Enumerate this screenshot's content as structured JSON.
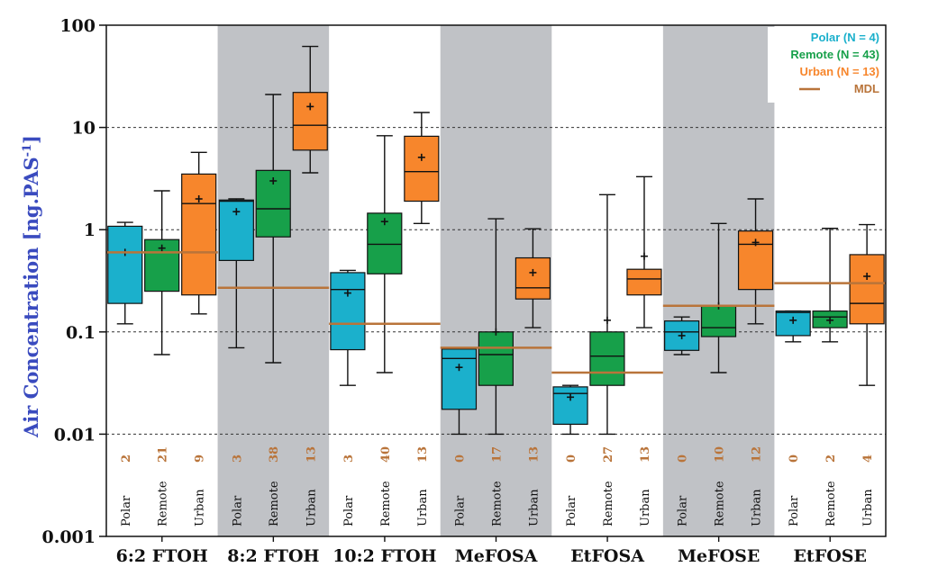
{
  "chart_data": {
    "type": "box",
    "ylabel": "Air Concentration [ng.PAS",
    "ylabel_sup": "-1",
    "ylabel_end": "]",
    "yscale": "log",
    "ylim": [
      0.001,
      100
    ],
    "yticks": [
      "0.001",
      "0.01",
      "0.1",
      "1",
      "10",
      "100"
    ],
    "grid": "dotted horizontal at 0.01, 0.1, 1, 10",
    "groups": [
      "Polar",
      "Remote",
      "Urban"
    ],
    "colors": {
      "Polar": "#1bb0cc",
      "Remote": "#17a04a",
      "Urban": "#f7862c",
      "MDL": "#b9743a",
      "shade": "#c0c2c6"
    },
    "legend": {
      "placement": "top-right",
      "entries": [
        {
          "label": "Polar (N = 4)",
          "color": "#1bb0cc"
        },
        {
          "label": "Remote (N = 43)",
          "color": "#17a04a"
        },
        {
          "label": "Urban (N = 13)",
          "color": "#f7862c"
        },
        {
          "label": "MDL",
          "color": "#b9743a"
        }
      ]
    },
    "categories": [
      {
        "name": "6:2 FTOH",
        "shaded": false,
        "mdl": 0.6,
        "boxes": [
          {
            "group": "Polar",
            "n": "2",
            "min": 0.12,
            "q1": 0.19,
            "median": 0.6,
            "q3": 1.08,
            "max": 1.18,
            "mean": 0.6
          },
          {
            "group": "Remote",
            "n": "21",
            "min": 0.06,
            "q1": 0.25,
            "median": 0.6,
            "q3": 0.8,
            "max": 2.4,
            "mean": 0.66
          },
          {
            "group": "Urban",
            "n": "9",
            "min": 0.15,
            "q1": 0.23,
            "median": 1.8,
            "q3": 3.5,
            "max": 5.7,
            "mean": 2.0
          }
        ]
      },
      {
        "name": "8:2 FTOH",
        "shaded": true,
        "mdl": 0.27,
        "boxes": [
          {
            "group": "Polar",
            "n": "3",
            "min": 0.07,
            "q1": 0.5,
            "median": 1.9,
            "q3": 1.95,
            "max": 2.0,
            "mean": 1.5
          },
          {
            "group": "Remote",
            "n": "38",
            "min": 0.05,
            "q1": 0.85,
            "median": 1.6,
            "q3": 3.8,
            "max": 21,
            "mean": 3.0
          },
          {
            "group": "Urban",
            "n": "13",
            "min": 3.6,
            "q1": 6.0,
            "median": 10.5,
            "q3": 22,
            "max": 62,
            "mean": 16
          }
        ]
      },
      {
        "name": "10:2 FTOH",
        "shaded": false,
        "mdl": 0.12,
        "boxes": [
          {
            "group": "Polar",
            "n": "3",
            "min": 0.03,
            "q1": 0.067,
            "median": 0.26,
            "q3": 0.38,
            "max": 0.4,
            "mean": 0.24
          },
          {
            "group": "Remote",
            "n": "40",
            "min": 0.04,
            "q1": 0.37,
            "median": 0.72,
            "q3": 1.45,
            "max": 8.3,
            "mean": 1.2
          },
          {
            "group": "Urban",
            "n": "13",
            "min": 1.15,
            "q1": 1.9,
            "median": 3.7,
            "q3": 8.2,
            "max": 14,
            "mean": 5.1
          }
        ]
      },
      {
        "name": "MeFOSA",
        "shaded": true,
        "mdl": 0.07,
        "boxes": [
          {
            "group": "Polar",
            "n": "0",
            "min": 0.01,
            "q1": 0.0175,
            "median": 0.055,
            "q3": 0.068,
            "max": 0.07,
            "mean": 0.045
          },
          {
            "group": "Remote",
            "n": "17",
            "min": 0.01,
            "q1": 0.03,
            "median": 0.06,
            "q3": 0.1,
            "max": 1.28,
            "mean": 0.1
          },
          {
            "group": "Urban",
            "n": "13",
            "min": 0.11,
            "q1": 0.21,
            "median": 0.27,
            "q3": 0.53,
            "max": 1.02,
            "mean": 0.38
          }
        ]
      },
      {
        "name": "EtFOSA",
        "shaded": false,
        "mdl": 0.04,
        "boxes": [
          {
            "group": "Polar",
            "n": "0",
            "min": 0.01,
            "q1": 0.0125,
            "median": 0.025,
            "q3": 0.029,
            "max": 0.03,
            "mean": 0.023
          },
          {
            "group": "Remote",
            "n": "27",
            "min": 0.01,
            "q1": 0.03,
            "median": 0.058,
            "q3": 0.1,
            "max": 2.2,
            "mean": 0.13
          },
          {
            "group": "Urban",
            "n": "13",
            "min": 0.11,
            "q1": 0.23,
            "median": 0.33,
            "q3": 0.41,
            "max": 3.3,
            "mean": 0.55
          }
        ]
      },
      {
        "name": "MeFOSE",
        "shaded": true,
        "mdl": 0.18,
        "boxes": [
          {
            "group": "Polar",
            "n": "0",
            "min": 0.06,
            "q1": 0.066,
            "median": 0.1,
            "q3": 0.128,
            "max": 0.14,
            "mean": 0.092
          },
          {
            "group": "Remote",
            "n": "10",
            "min": 0.04,
            "q1": 0.09,
            "median": 0.11,
            "q3": 0.18,
            "max": 1.15,
            "mean": 0.18
          },
          {
            "group": "Urban",
            "n": "12",
            "min": 0.12,
            "q1": 0.26,
            "median": 0.72,
            "q3": 0.97,
            "max": 2.0,
            "mean": 0.75
          }
        ]
      },
      {
        "name": "EtFOSE",
        "shaded": false,
        "mdl": 0.3,
        "boxes": [
          {
            "group": "Polar",
            "n": "0",
            "min": 0.08,
            "q1": 0.092,
            "median": 0.155,
            "q3": 0.16,
            "max": 0.16,
            "mean": 0.13
          },
          {
            "group": "Remote",
            "n": "2",
            "min": 0.08,
            "q1": 0.11,
            "median": 0.14,
            "q3": 0.16,
            "max": 1.03,
            "mean": 0.13
          },
          {
            "group": "Urban",
            "n": "4",
            "min": 0.03,
            "q1": 0.12,
            "median": 0.19,
            "q3": 0.57,
            "max": 1.12,
            "mean": 0.35
          }
        ]
      }
    ]
  }
}
